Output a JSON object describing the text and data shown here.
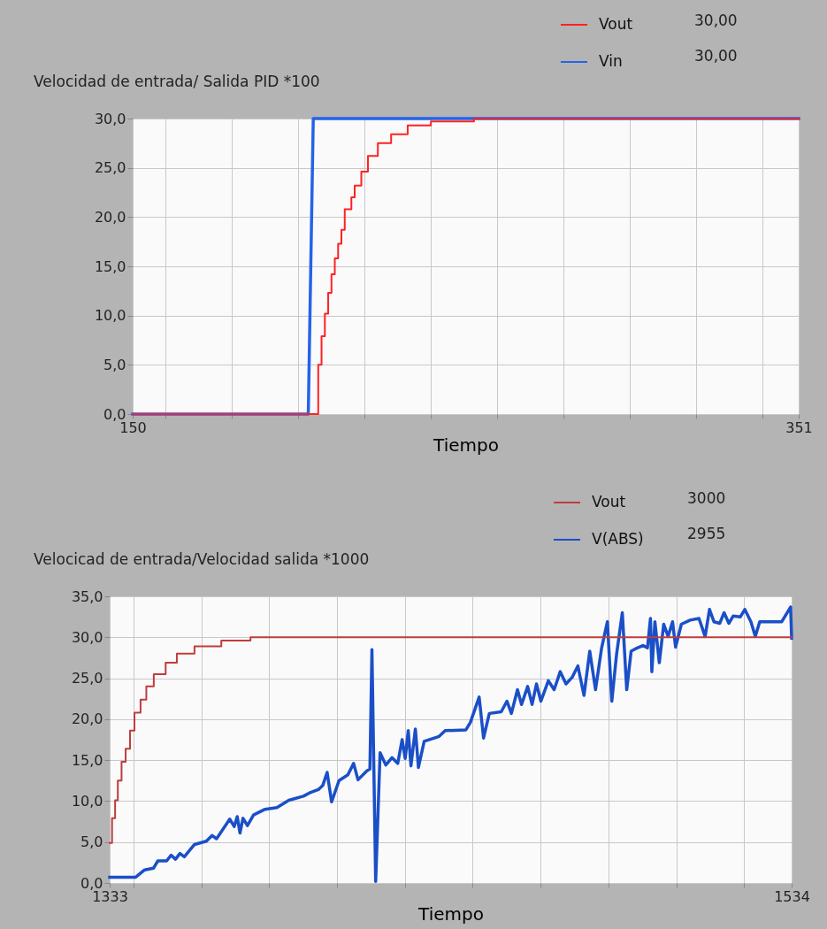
{
  "chart_data": [
    {
      "type": "line",
      "title": "Velocidad de entrada/ Salida PID *100",
      "xlabel": "Tiempo",
      "xlim": [
        150,
        351
      ],
      "xticks": [
        150,
        {
          "value": 160,
          "label": null
        },
        {
          "value": 180,
          "label": null
        },
        {
          "value": 200,
          "label": null
        },
        {
          "value": 220,
          "label": null
        },
        {
          "value": 240,
          "label": null
        },
        {
          "value": 260,
          "label": null
        },
        {
          "value": 280,
          "label": null
        },
        {
          "value": 300,
          "label": null
        },
        {
          "value": 320,
          "label": null
        },
        {
          "value": 340,
          "label": null
        },
        351
      ],
      "ylim": [
        0,
        30
      ],
      "yticks": [
        {
          "value": 0,
          "label": "0,0"
        },
        {
          "value": 5,
          "label": "5,0"
        },
        {
          "value": 10,
          "label": "10,0"
        },
        {
          "value": 15,
          "label": "15,0"
        },
        {
          "value": 20,
          "label": "20,0"
        },
        {
          "value": 25,
          "label": "25,0"
        },
        {
          "value": 30,
          "label": "30,0"
        }
      ],
      "grid": true,
      "legend": "top right",
      "annotations": [
        "30,00",
        "30,00"
      ],
      "series": [
        {
          "name": "Vout",
          "color": "#ff2222",
          "type": "step",
          "x": [
            150,
            205,
            206,
            207,
            208,
            209,
            210,
            211,
            212,
            213,
            214,
            216,
            217,
            219,
            221,
            224,
            228,
            233,
            240,
            253,
            351
          ],
          "values": [
            0,
            0,
            5,
            7.9,
            10.2,
            12.3,
            14.2,
            15.8,
            17.3,
            18.7,
            20.8,
            22,
            23.2,
            24.6,
            26.2,
            27.5,
            28.4,
            29.3,
            29.7,
            30,
            30
          ]
        },
        {
          "name": "Vin",
          "color": "#2463e8",
          "type": "line",
          "x": [
            150,
            203,
            204.5,
            351
          ],
          "values": [
            0,
            0,
            30,
            30
          ]
        }
      ]
    },
    {
      "type": "line",
      "title": "Velocicad de entrada/Velocidad salida *1000",
      "xlabel": "Tiempo",
      "xlim": [
        1333,
        1534
      ],
      "xticks": [
        1333,
        {
          "value": 1340,
          "label": null
        },
        {
          "value": 1360,
          "label": null
        },
        {
          "value": 1380,
          "label": null
        },
        {
          "value": 1400,
          "label": null
        },
        {
          "value": 1420,
          "label": null
        },
        {
          "value": 1440,
          "label": null
        },
        {
          "value": 1460,
          "label": null
        },
        {
          "value": 1480,
          "label": null
        },
        {
          "value": 1500,
          "label": null
        },
        {
          "value": 1520,
          "label": null
        },
        1534
      ],
      "ylim": [
        0,
        35
      ],
      "yticks": [
        {
          "value": 0,
          "label": "0,0"
        },
        {
          "value": 5,
          "label": "5,0"
        },
        {
          "value": 10,
          "label": "10,0"
        },
        {
          "value": 15,
          "label": "15,0"
        },
        {
          "value": 20,
          "label": "20,0"
        },
        {
          "value": 25,
          "label": "25,0"
        },
        {
          "value": 30,
          "label": "30,0"
        },
        {
          "value": 35,
          "label": "35,0"
        }
      ],
      "grid": true,
      "legend": "top right",
      "annotations": [
        "3000",
        "2955"
      ],
      "series": [
        {
          "name": "Vout",
          "color": "#c03c3c",
          "type": "step",
          "x": [
            1333,
            1333.7,
            1334.6,
            1335.4,
            1336.5,
            1337.7,
            1339,
            1340.3,
            1342.1,
            1343.8,
            1346,
            1349.5,
            1352.8,
            1358,
            1365.9,
            1374.5,
            1534
          ],
          "values": [
            4.9,
            7.9,
            10.1,
            12.5,
            14.8,
            16.4,
            18.6,
            20.8,
            22.4,
            24,
            25.5,
            26.9,
            28,
            28.9,
            29.6,
            30,
            30
          ]
        },
        {
          "name": "V(ABS)",
          "color": "#1a4fc8",
          "type": "line",
          "x": [
            1333,
            1340.6,
            1343.3,
            1345.9,
            1347.2,
            1349.8,
            1351.1,
            1352.4,
            1353.7,
            1355,
            1358,
            1361.5,
            1363.2,
            1364.5,
            1368.4,
            1369.7,
            1370.6,
            1371.4,
            1372.3,
            1373.6,
            1375.4,
            1378.8,
            1382.3,
            1385.8,
            1390.1,
            1391.9,
            1394.5,
            1395.8,
            1397.1,
            1398.4,
            1400.6,
            1403.2,
            1404.9,
            1406.2,
            1408.8,
            1409.7,
            1410.3,
            1411.4,
            1412.7,
            1414.4,
            1416.2,
            1417.9,
            1419.2,
            1420.1,
            1421,
            1421.8,
            1423.1,
            1424,
            1425.7,
            1430.1,
            1431.9,
            1438,
            1439.3,
            1441.9,
            1443.2,
            1444.9,
            1448.4,
            1450.1,
            1451.4,
            1453.2,
            1454.4,
            1456.2,
            1457.5,
            1458.8,
            1460.1,
            1462.3,
            1464,
            1465.8,
            1467.5,
            1469.3,
            1471,
            1472.8,
            1474.5,
            1476.2,
            1478,
            1479.7,
            1481,
            1482.4,
            1484.1,
            1485.4,
            1486.7,
            1488.5,
            1490.2,
            1491.5,
            1492.4,
            1492.8,
            1493.7,
            1495,
            1496.3,
            1497.6,
            1498.9,
            1499.8,
            1501.5,
            1504.1,
            1506.7,
            1508.5,
            1509.8,
            1511.1,
            1512.8,
            1514.1,
            1515.5,
            1516.8,
            1518.9,
            1520.2,
            1522,
            1523.3,
            1524.6,
            1527.6,
            1531.1,
            1533.7,
            1534
          ],
          "values": [
            0.7,
            0.7,
            1.6,
            1.8,
            2.7,
            2.7,
            3.4,
            2.9,
            3.6,
            3.2,
            4.7,
            5.1,
            5.8,
            5.4,
            7.8,
            6.9,
            8.1,
            6.1,
            7.9,
            7,
            8.3,
            9,
            9.2,
            10.1,
            10.6,
            11,
            11.4,
            11.9,
            13.5,
            9.9,
            12.5,
            13.2,
            14.6,
            12.6,
            13.7,
            13.9,
            28.5,
            0.2,
            15.9,
            14.4,
            15.3,
            14.6,
            17.5,
            15.2,
            18.6,
            14.3,
            18.8,
            14.1,
            17.3,
            17.9,
            18.6,
            18.7,
            19.6,
            22.7,
            17.7,
            20.7,
            20.9,
            22.2,
            20.7,
            23.6,
            21.8,
            24,
            21.8,
            24.3,
            22.2,
            24.7,
            23.6,
            25.8,
            24.3,
            25.1,
            26.5,
            22.9,
            28.3,
            23.6,
            28.7,
            31.9,
            22.2,
            27.9,
            33,
            23.6,
            28.3,
            28.7,
            29,
            28.7,
            32.3,
            25.8,
            31.9,
            26.9,
            31.6,
            30.1,
            31.9,
            28.8,
            31.6,
            32.1,
            32.3,
            30.1,
            33.4,
            31.9,
            31.7,
            33,
            31.7,
            32.6,
            32.5,
            33.4,
            31.9,
            30.1,
            31.9,
            31.9,
            31.9,
            33.7,
            29.9
          ]
        }
      ]
    }
  ]
}
